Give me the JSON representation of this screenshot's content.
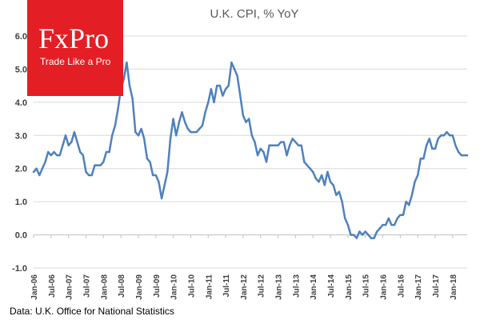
{
  "logo": {
    "name": "FxPro",
    "tagline": "Trade Like a Pro"
  },
  "source_note": "Data: U.K. Office for National Statistics",
  "chart_data": {
    "type": "line",
    "title": "U.K. CPI, % YoY",
    "xlabel": "",
    "ylabel": "",
    "ylim": [
      -1.0,
      6.0
    ],
    "y_ticks": [
      "-1.0",
      "0.0",
      "1.0",
      "2.0",
      "3.0",
      "4.0",
      "5.0",
      "6.0"
    ],
    "x_ticks": [
      "Jan-06",
      "Jul-06",
      "Jan-07",
      "Jul-07",
      "Jan-08",
      "Jul-08",
      "Jan-09",
      "Jul-09",
      "Jan-10",
      "Jul-10",
      "Jan-11",
      "Jul-11",
      "Jan-12",
      "Jul-12",
      "Jan-13",
      "Jul-13",
      "Jan-14",
      "Jul-14",
      "Jan-15",
      "Jul-15",
      "Jan-16",
      "Jul-16",
      "Jan-17",
      "Jul-17",
      "Jan-18"
    ],
    "x_start": "2006-01",
    "x_end": "2018-06",
    "grid": "horizontal",
    "line_color": "#4f81bd",
    "series": [
      {
        "name": "",
        "x": [
          "2006-01",
          "2006-02",
          "2006-03",
          "2006-04",
          "2006-05",
          "2006-06",
          "2006-07",
          "2006-08",
          "2006-09",
          "2006-10",
          "2006-11",
          "2006-12",
          "2007-01",
          "2007-02",
          "2007-03",
          "2007-04",
          "2007-05",
          "2007-06",
          "2007-07",
          "2007-08",
          "2007-09",
          "2007-10",
          "2007-11",
          "2007-12",
          "2008-01",
          "2008-02",
          "2008-03",
          "2008-04",
          "2008-05",
          "2008-06",
          "2008-07",
          "2008-08",
          "2008-09",
          "2008-10",
          "2008-11",
          "2008-12",
          "2009-01",
          "2009-02",
          "2009-03",
          "2009-04",
          "2009-05",
          "2009-06",
          "2009-07",
          "2009-08",
          "2009-09",
          "2009-10",
          "2009-11",
          "2009-12",
          "2010-01",
          "2010-02",
          "2010-03",
          "2010-04",
          "2010-05",
          "2010-06",
          "2010-07",
          "2010-08",
          "2010-09",
          "2010-10",
          "2010-11",
          "2010-12",
          "2011-01",
          "2011-02",
          "2011-03",
          "2011-04",
          "2011-05",
          "2011-06",
          "2011-07",
          "2011-08",
          "2011-09",
          "2011-10",
          "2011-11",
          "2011-12",
          "2012-01",
          "2012-02",
          "2012-03",
          "2012-04",
          "2012-05",
          "2012-06",
          "2012-07",
          "2012-08",
          "2012-09",
          "2012-10",
          "2012-11",
          "2012-12",
          "2013-01",
          "2013-02",
          "2013-03",
          "2013-04",
          "2013-05",
          "2013-06",
          "2013-07",
          "2013-08",
          "2013-09",
          "2013-10",
          "2013-11",
          "2013-12",
          "2014-01",
          "2014-02",
          "2014-03",
          "2014-04",
          "2014-05",
          "2014-06",
          "2014-07",
          "2014-08",
          "2014-09",
          "2014-10",
          "2014-11",
          "2014-12",
          "2015-01",
          "2015-02",
          "2015-03",
          "2015-04",
          "2015-05",
          "2015-06",
          "2015-07",
          "2015-08",
          "2015-09",
          "2015-10",
          "2015-11",
          "2015-12",
          "2016-01",
          "2016-02",
          "2016-03",
          "2016-04",
          "2016-05",
          "2016-06",
          "2016-07",
          "2016-08",
          "2016-09",
          "2016-10",
          "2016-11",
          "2016-12",
          "2017-01",
          "2017-02",
          "2017-03",
          "2017-04",
          "2017-05",
          "2017-06",
          "2017-07",
          "2017-08",
          "2017-09",
          "2017-10",
          "2017-11",
          "2017-12",
          "2018-01",
          "2018-02",
          "2018-03",
          "2018-04",
          "2018-05",
          "2018-06"
        ],
        "values": [
          1.9,
          2.0,
          1.8,
          2.0,
          2.2,
          2.5,
          2.4,
          2.5,
          2.4,
          2.4,
          2.7,
          3.0,
          2.7,
          2.8,
          3.1,
          2.8,
          2.5,
          2.4,
          1.9,
          1.8,
          1.8,
          2.1,
          2.1,
          2.1,
          2.2,
          2.5,
          2.5,
          3.0,
          3.3,
          3.8,
          4.4,
          4.7,
          5.2,
          4.5,
          4.1,
          3.1,
          3.0,
          3.2,
          2.9,
          2.3,
          2.2,
          1.8,
          1.8,
          1.6,
          1.1,
          1.5,
          1.9,
          2.9,
          3.5,
          3.0,
          3.4,
          3.7,
          3.4,
          3.2,
          3.1,
          3.1,
          3.1,
          3.2,
          3.3,
          3.7,
          4.0,
          4.4,
          4.0,
          4.5,
          4.5,
          4.2,
          4.4,
          4.5,
          5.2,
          5.0,
          4.8,
          4.2,
          3.6,
          3.4,
          3.5,
          3.0,
          2.8,
          2.4,
          2.6,
          2.5,
          2.2,
          2.7,
          2.7,
          2.7,
          2.7,
          2.8,
          2.8,
          2.4,
          2.7,
          2.9,
          2.8,
          2.7,
          2.7,
          2.2,
          2.1,
          2.0,
          1.9,
          1.7,
          1.6,
          1.8,
          1.5,
          1.9,
          1.6,
          1.5,
          1.2,
          1.3,
          1.0,
          0.5,
          0.3,
          0.0,
          0.0,
          -0.1,
          0.1,
          0.0,
          0.1,
          0.0,
          -0.1,
          -0.1,
          0.1,
          0.2,
          0.3,
          0.3,
          0.5,
          0.3,
          0.3,
          0.5,
          0.6,
          0.6,
          1.0,
          0.9,
          1.2,
          1.6,
          1.8,
          2.3,
          2.3,
          2.7,
          2.9,
          2.6,
          2.6,
          2.9,
          3.0,
          3.0,
          3.1,
          3.0,
          3.0,
          2.7,
          2.5,
          2.4,
          2.4,
          2.4
        ]
      }
    ]
  }
}
